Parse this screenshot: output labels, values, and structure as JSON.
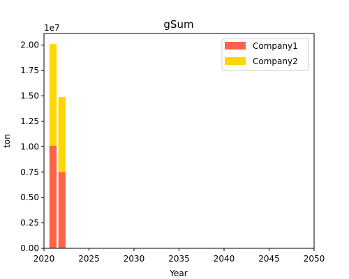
{
  "chart_data": {
    "type": "bar",
    "stacked": true,
    "title": "gSum",
    "xlabel": "Year",
    "ylabel": "ton",
    "y_offset_label": "1e7",
    "y_scale_divisor": 10000000,
    "xlim": [
      2020,
      2050
    ],
    "ylim": [
      0,
      21150000
    ],
    "x_ticks": [
      2020,
      2025,
      2030,
      2035,
      2040,
      2045,
      2050
    ],
    "y_ticks": [
      0,
      2500000,
      5000000,
      7500000,
      10000000,
      12500000,
      15000000,
      17500000,
      20000000
    ],
    "y_tick_labels": [
      "0.00",
      "0.25",
      "0.50",
      "0.75",
      "1.00",
      "1.25",
      "1.50",
      "1.75",
      "2.00"
    ],
    "bar_width_years": 0.8,
    "x": [
      2021,
      2022
    ],
    "series": [
      {
        "name": "Company1",
        "color": "#ff6347",
        "values": [
          10100000,
          7500000
        ]
      },
      {
        "name": "Company2",
        "color": "#ffd700",
        "values": [
          10000000,
          7400000
        ]
      }
    ],
    "grid": false,
    "legend_position": "upper-right"
  }
}
